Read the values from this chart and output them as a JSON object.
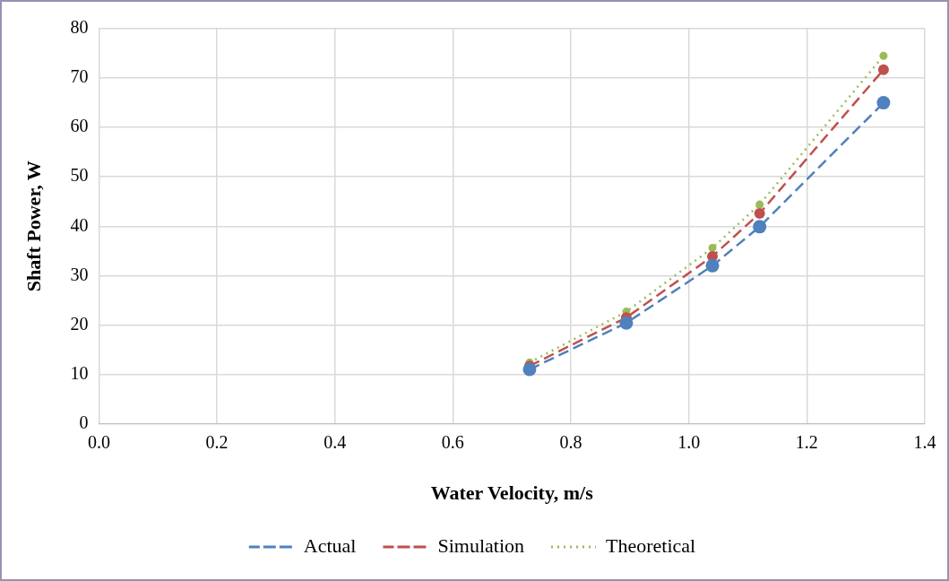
{
  "chart_data": {
    "type": "line",
    "xlabel": "Water Velocity, m/s",
    "ylabel": "Shaft Power, W",
    "x": [
      0.73,
      0.894,
      1.04,
      1.12,
      1.33
    ],
    "series": [
      {
        "name": "Actual",
        "color": "#4f81bd",
        "values": [
          11.0,
          20.4,
          32.0,
          39.9,
          65.0
        ],
        "line_style": "dashed"
      },
      {
        "name": "Simulation",
        "color": "#c0504d",
        "values": [
          11.7,
          21.5,
          33.9,
          42.6,
          71.7
        ],
        "line_style": "dashed"
      },
      {
        "name": "Theoretical",
        "color": "#9bbb59",
        "values": [
          12.4,
          22.7,
          35.6,
          44.4,
          74.5
        ],
        "line_style": "dotted"
      }
    ],
    "xlim": [
      0,
      1.4
    ],
    "xticks": [
      {
        "value": 0,
        "label": "0.0"
      },
      {
        "value": 0.2,
        "label": "0.2"
      },
      {
        "value": 0.4,
        "label": "0.4"
      },
      {
        "value": 0.6,
        "label": "0.6"
      },
      {
        "value": 0.8,
        "label": "0.8"
      },
      {
        "value": 1,
        "label": "1.0"
      },
      {
        "value": 1.2,
        "label": "1.2"
      },
      {
        "value": 1.4,
        "label": "1.4"
      }
    ],
    "ylim": [
      0,
      80
    ],
    "yticks": [
      0,
      10,
      20,
      30,
      40,
      50,
      60,
      70,
      80
    ],
    "grid": true,
    "legend": "bottom",
    "marker": "circle"
  }
}
